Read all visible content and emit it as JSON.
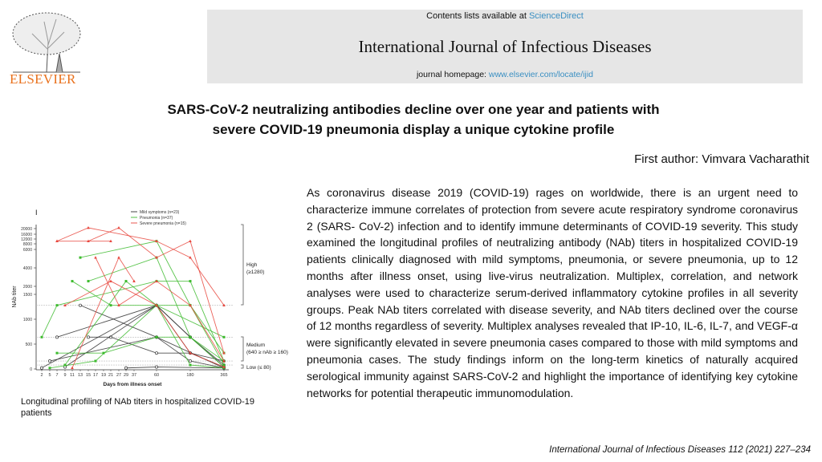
{
  "header": {
    "publisher_logo": "ELSEVIER",
    "contents_prefix": "Contents lists available at ",
    "contents_link": "ScienceDirect",
    "journal_title": "International Journal of Infectious Diseases",
    "homepage_prefix": "journal homepage: ",
    "homepage_link": "www.elsevier.com/locate/ijid"
  },
  "article": {
    "title_line1": "SARS-CoV-2 neutralizing antibodies decline over one year and patients with",
    "title_line2": "severe COVID-19 pneumonia display a unique cytokine profile",
    "first_author": "First author: Vimvara Vacharathit",
    "abstract": "As coronavirus disease 2019 (COVID-19) rages on worldwide, there is an urgent need to characterize immune correlates of protection from severe acute respiratory syndrome coronavirus 2 (SARS- CoV-2) infection and to identify immune determinants of COVID-19 severity. This study examined the longitudinal profiles of neutralizing antibody (NAb) titers in hospitalized COVID-19 patients clinically diagnosed with mild symptoms, pneumonia, or severe pneumonia, up to 12 months after illness onset, using live-virus neutralization. Multiplex, correlation, and network analyses were used to characterize serum-derived inflammatory cytokine profiles in all severity groups. Peak NAb titers correlated with disease severity, and NAb titers declined over the course of 12 months regardless of severity. Multiplex analyses revealed that IP-10, IL-6, IL-7, and VEGF-α were significantly elevated in severe pneumonia cases compared to those with mild symptoms and pneumonia cases. The study findings inform on the long-term kinetics of naturally acquired serological immunity against SARS-CoV-2 and highlight the importance of identifying key cytokine networks for potential therapeutic immunomodulation.",
    "figure_caption": "Longitudinal profiling of NAb titers in hospitalized COVID-19 patients",
    "citation": "International Journal of Infectious Diseases 112 (2021) 227–234"
  },
  "chart_data": {
    "type": "line",
    "panel_label": "I",
    "xlabel": "Days from illness onset",
    "ylabel": "NAb titer",
    "x_ticks": [
      "2",
      "5",
      "7",
      "9",
      "11",
      "13",
      "15",
      "17",
      "19",
      "21",
      "27",
      "29",
      "37",
      "60",
      "180",
      "365"
    ],
    "y_ticks": [
      "0",
      "500",
      "1000",
      "1500",
      "2000",
      "4000",
      "6000",
      "8000",
      "12000",
      "16000",
      "20000"
    ],
    "y_scale": "broken axis",
    "reference_lines": [
      1280,
      640,
      160,
      80
    ],
    "bands": [
      {
        "label": "High",
        "sublabel": "(≥1280)"
      },
      {
        "label": "Medium",
        "sublabel": "(640 ≥ nAb ≥ 160)"
      },
      {
        "label": "Low (≤ 80)",
        "sublabel": ""
      }
    ],
    "series": [
      {
        "name": "Mild symptoms (n=23)",
        "color": "#333333",
        "marker": "circle",
        "lines": [
          [
            [
              7,
              640
            ],
            [
              60,
              1280
            ],
            [
              180,
              640
            ],
            [
              365,
              40
            ]
          ],
          [
            [
              13,
              1280
            ],
            [
              60,
              640
            ],
            [
              365,
              20
            ]
          ],
          [
            [
              2,
              20
            ],
            [
              60,
              1280
            ],
            [
              180,
              320
            ],
            [
              365,
              40
            ]
          ],
          [
            [
              5,
              160
            ],
            [
              60,
              640
            ],
            [
              180,
              160
            ],
            [
              365,
              20
            ]
          ],
          [
            [
              15,
              640
            ],
            [
              21,
              640
            ],
            [
              60,
              320
            ],
            [
              180,
              320
            ],
            [
              365,
              160
            ]
          ],
          [
            [
              9,
              40
            ],
            [
              60,
              1280
            ],
            [
              180,
              640
            ],
            [
              365,
              80
            ]
          ],
          [
            [
              29,
              20
            ],
            [
              60,
              40
            ],
            [
              365,
              20
            ]
          ]
        ]
      },
      {
        "name": "Pneumonia (n=37)",
        "color": "#3dbb2e",
        "marker": "square",
        "lines": [
          [
            [
              2,
              640
            ],
            [
              7,
              1280
            ],
            [
              60,
              2560
            ],
            [
              180,
              2560
            ],
            [
              365,
              160
            ]
          ],
          [
            [
              13,
              5120
            ],
            [
              60,
              10240
            ],
            [
              180,
              1280
            ],
            [
              365,
              80
            ]
          ],
          [
            [
              11,
              2560
            ],
            [
              21,
              1280
            ],
            [
              60,
              1280
            ],
            [
              365,
              640
            ]
          ],
          [
            [
              7,
              320
            ],
            [
              19,
              320
            ],
            [
              60,
              640
            ],
            [
              180,
              640
            ],
            [
              365,
              160
            ]
          ],
          [
            [
              15,
              2560
            ],
            [
              60,
              5120
            ],
            [
              180,
              640
            ],
            [
              365,
              40
            ]
          ],
          [
            [
              5,
              20
            ],
            [
              17,
              160
            ],
            [
              60,
              1280
            ],
            [
              180,
              80
            ],
            [
              365,
              20
            ]
          ],
          [
            [
              9,
              80
            ],
            [
              29,
              2560
            ],
            [
              60,
              1280
            ],
            [
              180,
              1280
            ],
            [
              365,
              320
            ]
          ]
        ]
      },
      {
        "name": "Severe pneumonia (n=15)",
        "color": "#e8453c",
        "marker": "triangle",
        "lines": [
          [
            [
              7,
              10240
            ],
            [
              15,
              20480
            ],
            [
              60,
              10240
            ],
            [
              180,
              5120
            ],
            [
              365,
              1280
            ]
          ],
          [
            [
              15,
              10240
            ],
            [
              27,
              20480
            ],
            [
              60,
              5120
            ],
            [
              180,
              10240
            ],
            [
              365,
              320
            ]
          ],
          [
            [
              17,
              5120
            ],
            [
              27,
              1280
            ],
            [
              60,
              2560
            ],
            [
              180,
              1280
            ],
            [
              365,
              160
            ]
          ],
          [
            [
              9,
              1280
            ],
            [
              21,
              2560
            ],
            [
              60,
              1280
            ],
            [
              180,
              320
            ],
            [
              365,
              40
            ]
          ],
          [
            [
              11,
              20
            ],
            [
              27,
              5120
            ],
            [
              37,
              2560
            ]
          ],
          [
            [
              7,
              10240
            ],
            [
              21,
              10240
            ]
          ]
        ]
      }
    ]
  }
}
